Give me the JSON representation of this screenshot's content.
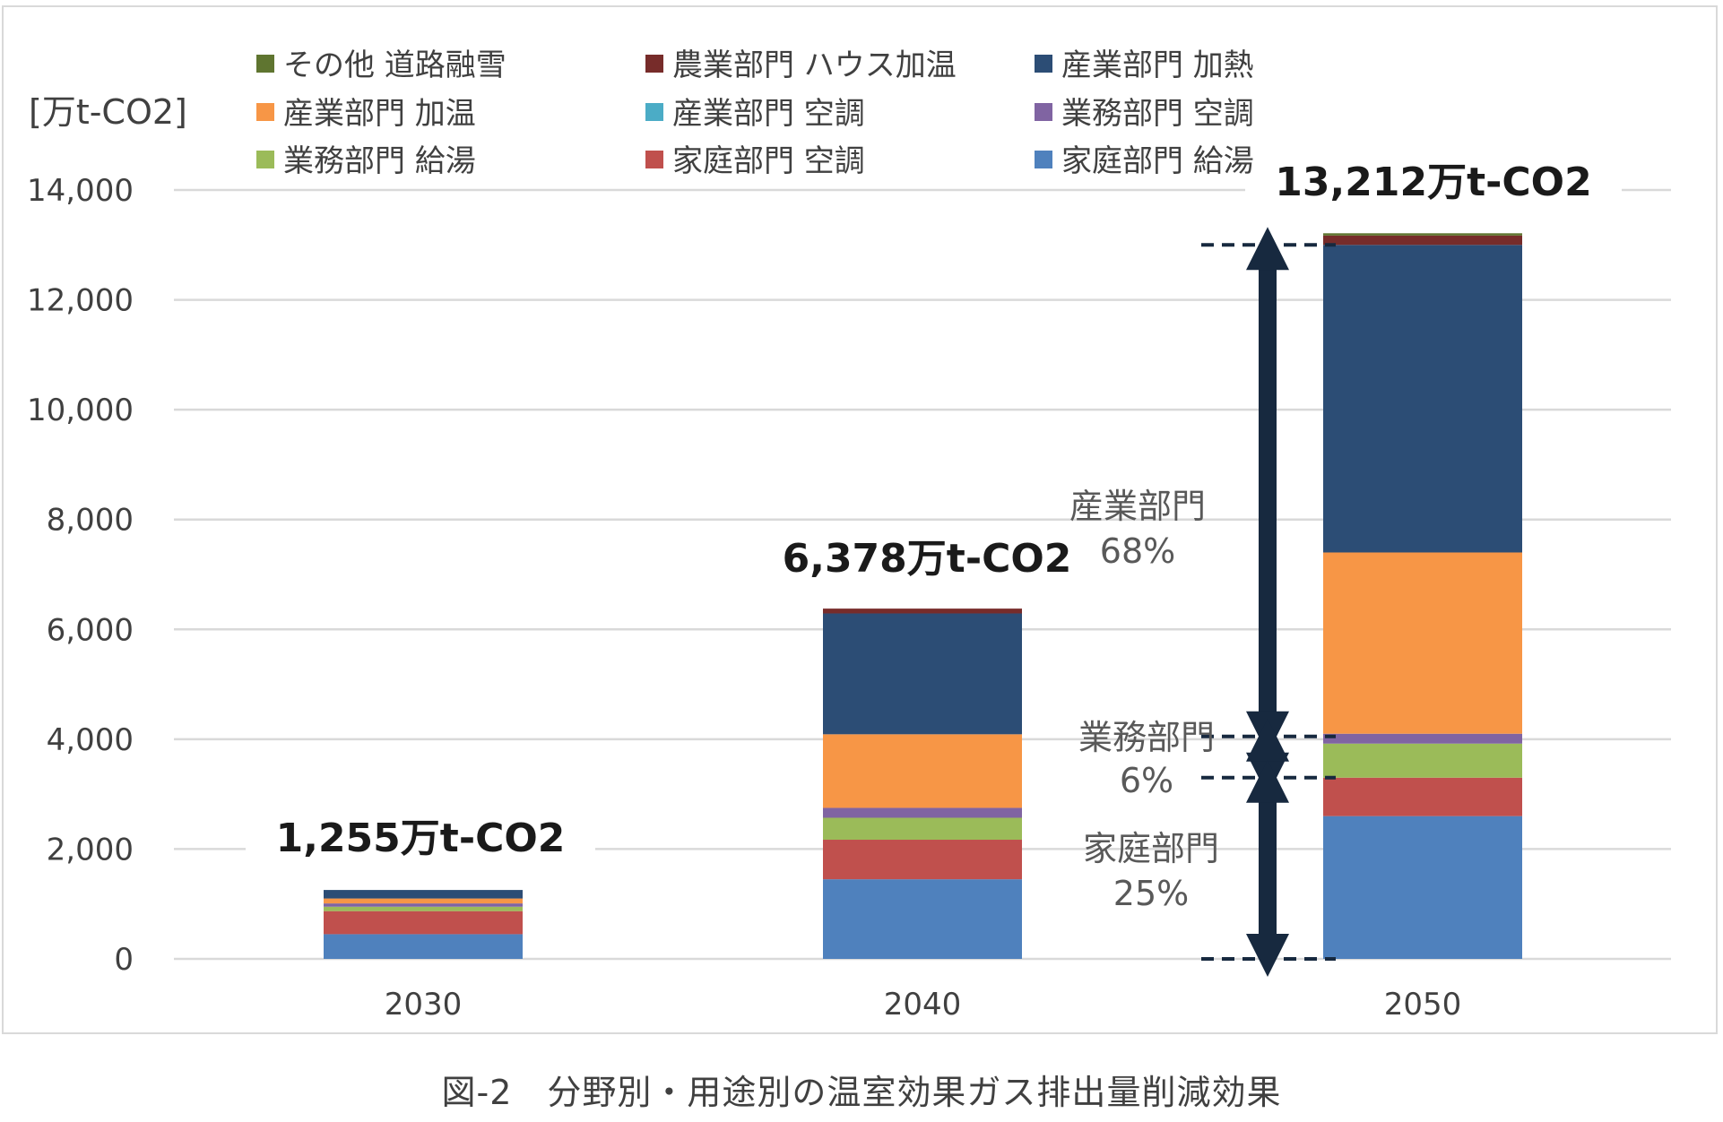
{
  "caption": "図-2　分野別・用途別の温室効果ガス排出量削減効果",
  "chart_data": {
    "type": "bar",
    "stacked": true,
    "title": "",
    "ylabel": "[万t-CO2]",
    "xlabel": "",
    "ylim": [
      0,
      14000
    ],
    "yticks": [
      0,
      2000,
      4000,
      6000,
      8000,
      10000,
      12000,
      14000
    ],
    "ytick_labels": [
      "0",
      "2,000",
      "4,000",
      "6,000",
      "8,000",
      "10,000",
      "12,000",
      "14,000"
    ],
    "grid": true,
    "legend_position": "top",
    "categories": [
      "2030",
      "2040",
      "2050"
    ],
    "series": [
      {
        "name": "家庭部門 給湯",
        "color": "#4f81bd",
        "values": [
          450,
          1450,
          2600
        ]
      },
      {
        "name": "家庭部門 空調",
        "color": "#c0504d",
        "values": [
          420,
          720,
          700
        ]
      },
      {
        "name": "業務部門 給湯",
        "color": "#9bbb59",
        "values": [
          80,
          400,
          620
        ]
      },
      {
        "name": "業務部門 空調",
        "color": "#8064a2",
        "values": [
          60,
          180,
          180
        ]
      },
      {
        "name": "産業部門 空調",
        "color": "#4bacc6",
        "values": [
          0,
          0,
          0
        ]
      },
      {
        "name": "産業部門 加温",
        "color": "#f79646",
        "values": [
          90,
          1340,
          3300
        ]
      },
      {
        "name": "産業部門 加熱",
        "color": "#2c4d75",
        "values": [
          155,
          2200,
          5600
        ]
      },
      {
        "name": "農業部門 ハウス加温",
        "color": "#772c2a",
        "values": [
          0,
          88,
          170
        ]
      },
      {
        "name": "その他 道路融雪",
        "color": "#5f7530",
        "values": [
          0,
          0,
          42
        ]
      }
    ],
    "legend_order": [
      "その他 道路融雪",
      "農業部門 ハウス加温",
      "産業部門 加熱",
      "産業部門 加温",
      "産業部門 空調",
      "業務部門 空調",
      "業務部門 給湯",
      "家庭部門 空調",
      "家庭部門 給湯"
    ],
    "totals": [
      {
        "category": "2030",
        "value": 1255,
        "label": "1,255万t-CO2"
      },
      {
        "category": "2040",
        "value": 6378,
        "label": "6,378万t-CO2"
      },
      {
        "category": "2050",
        "value": 13212,
        "label": "13,212万t-CO2"
      }
    ],
    "annotations": [
      {
        "sector": "産業部門",
        "share": "68%",
        "from": 4050,
        "to": 13000
      },
      {
        "sector": "業務部門",
        "share": "6%",
        "from": 3300,
        "to": 4050
      },
      {
        "sector": "家庭部門",
        "share": "25%",
        "from": 0,
        "to": 3300
      }
    ]
  }
}
